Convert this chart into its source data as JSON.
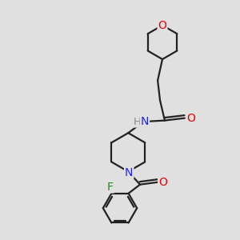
{
  "bg_color": "#e0e0e0",
  "atom_colors": {
    "C": "#000000",
    "N": "#2222ff",
    "O": "#ee0000",
    "F": "#228822",
    "H": "#888888"
  },
  "bond_color": "#222222",
  "bond_width": 1.6
}
